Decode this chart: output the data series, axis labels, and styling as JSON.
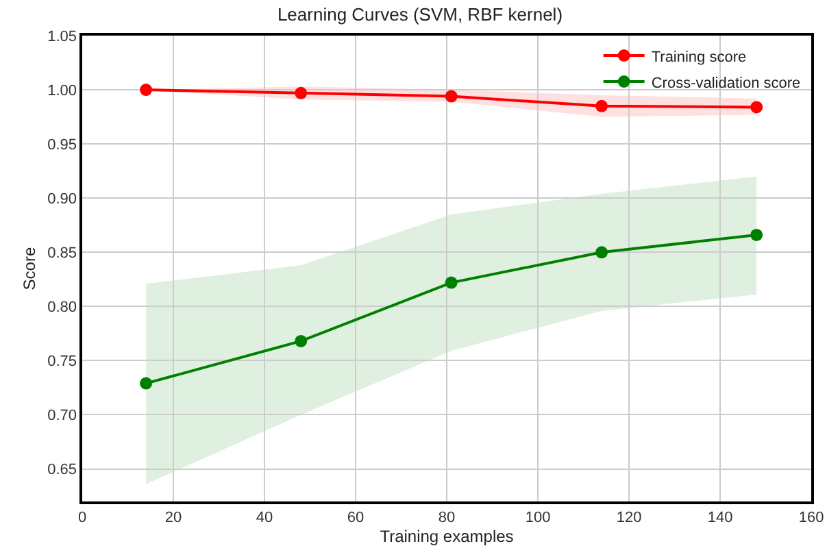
{
  "chart_data": {
    "type": "line",
    "title": "Learning Curves (SVM, RBF kernel)",
    "xlabel": "Training examples",
    "ylabel": "Score",
    "x": [
      14,
      48,
      81,
      114,
      148
    ],
    "series": [
      {
        "name": "Training score",
        "color": "#ff0000",
        "marker": "circle",
        "values": [
          1.0,
          0.997,
          0.994,
          0.985,
          0.984
        ],
        "lower": [
          1.0,
          0.991,
          0.989,
          0.975,
          0.977
        ],
        "upper": [
          1.0,
          1.003,
          1.0,
          0.995,
          0.992
        ]
      },
      {
        "name": "Cross-validation score",
        "color": "#008000",
        "marker": "circle",
        "values": [
          0.729,
          0.768,
          0.822,
          0.85,
          0.866
        ],
        "lower": [
          0.636,
          0.7,
          0.759,
          0.796,
          0.811
        ],
        "upper": [
          0.821,
          0.838,
          0.885,
          0.904,
          0.92
        ]
      }
    ],
    "xlim": [
      0,
      160
    ],
    "xticks": [
      0,
      20,
      40,
      60,
      80,
      100,
      120,
      140,
      160
    ],
    "ylim": [
      0.62,
      1.05
    ],
    "yticks": [
      {
        "value": 0.65,
        "label": "0.65"
      },
      {
        "value": 0.7,
        "label": "0.70"
      },
      {
        "value": 0.75,
        "label": "0.75"
      },
      {
        "value": 0.8,
        "label": "0.80"
      },
      {
        "value": 0.85,
        "label": "0.85"
      },
      {
        "value": 0.9,
        "label": "0.90"
      },
      {
        "value": 0.95,
        "label": "0.95"
      },
      {
        "value": 1.0,
        "label": "1.00"
      },
      {
        "value": 1.05,
        "label": "1.05"
      }
    ],
    "grid": true,
    "legend": "top right",
    "line_style": "solid"
  }
}
